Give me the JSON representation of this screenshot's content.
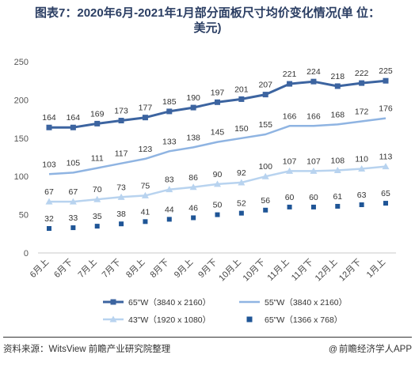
{
  "title_line1": "图表7：2020年6月-2021年1月部分面板尺寸均价变化情况(单 位：",
  "title_line2": "美元)",
  "source": "资料来源：WitsView 前瞻产业研究院整理",
  "brand": "前瞻经济学人APP",
  "brand_icon": "at-sign-icon",
  "chart_data": {
    "type": "line",
    "title": "图表7：2020年6月-2021年1月部分面板尺寸均价变化情况(单 位：美元)",
    "xlabel": "",
    "ylabel": "",
    "ylim": [
      0,
      250
    ],
    "yticks": [
      0,
      50,
      100,
      150,
      200,
      250
    ],
    "grid": false,
    "legend_position": "bottom",
    "categories": [
      "6月上",
      "6月下",
      "7月上",
      "7月下",
      "8月上",
      "8月下",
      "9月上",
      "9月下",
      "10月上",
      "10月下",
      "11月上",
      "11月下",
      "12月上",
      "12月下",
      "1月上"
    ],
    "series": [
      {
        "name": "65\"W（3840 x 2160）",
        "color": "#3c64a0",
        "marker": "square",
        "width": 3,
        "values": [
          164,
          164,
          169,
          173,
          177,
          185,
          190,
          197,
          201,
          207,
          221,
          224,
          218,
          222,
          225
        ]
      },
      {
        "name": "55\"W（3840 x 2160）",
        "color": "#8fb4e2",
        "marker": "none",
        "width": 2.5,
        "values": [
          103,
          105,
          111,
          117,
          123,
          133,
          138,
          145,
          150,
          155,
          166,
          166,
          168,
          172,
          176
        ]
      },
      {
        "name": "43\"W（1920 x 1080）",
        "color": "#b8d3ef",
        "marker": "triangle",
        "width": 2.5,
        "values": [
          67,
          67,
          70,
          73,
          75,
          83,
          86,
          90,
          92,
          100,
          107,
          107,
          108,
          110,
          113
        ]
      },
      {
        "name": "65\"W（1366 x 768）",
        "color": "#1f5596",
        "marker": "square-only",
        "width": 0,
        "values": [
          32,
          33,
          35,
          38,
          41,
          44,
          46,
          50,
          52,
          56,
          60,
          60,
          61,
          63,
          65
        ]
      }
    ]
  }
}
